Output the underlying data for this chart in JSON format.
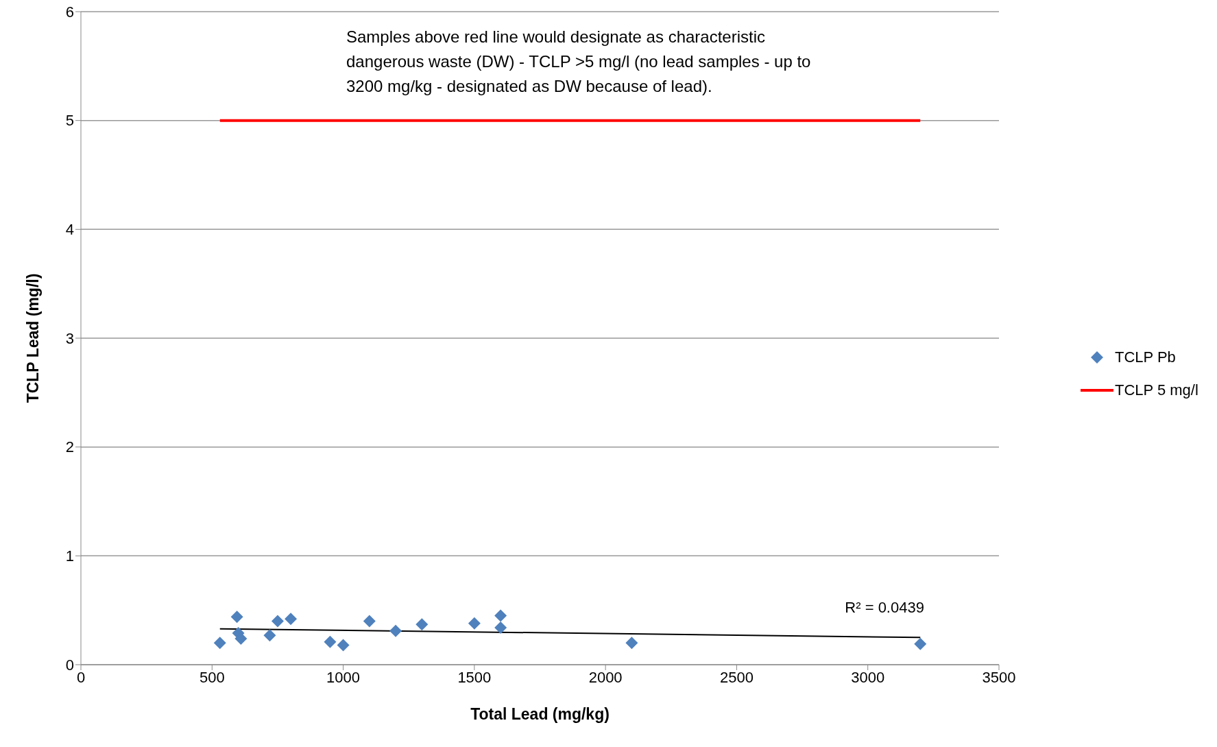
{
  "chart_data": {
    "type": "scatter",
    "xlabel": "Total Lead (mg/kg)",
    "ylabel": "TCLP Lead (mg/l)",
    "xlim": [
      0,
      3500
    ],
    "xticks": [
      0,
      500,
      1000,
      1500,
      2000,
      2500,
      3000,
      3500
    ],
    "ylim": [
      0,
      6
    ],
    "yticks": [
      0,
      1,
      2,
      3,
      4,
      5,
      6
    ],
    "grid": "y",
    "legend": "right",
    "marker": "diamond",
    "series": [
      {
        "name": "TCLP Pb",
        "color": "#4f81bd",
        "x": [
          530,
          595,
          600,
          610,
          720,
          750,
          800,
          950,
          1000,
          1100,
          1200,
          1300,
          1500,
          1600,
          1600,
          2100,
          3200
        ],
        "values": [
          0.2,
          0.44,
          0.29,
          0.24,
          0.27,
          0.4,
          0.42,
          0.21,
          0.18,
          0.4,
          0.31,
          0.37,
          0.38,
          0.45,
          0.34,
          0.2,
          0.19
        ]
      },
      {
        "name": "TCLP 5 mg/l",
        "type": "line",
        "color": "#ff0000",
        "marker": "none",
        "x": [
          530,
          3200
        ],
        "values": [
          5,
          5
        ]
      },
      {
        "type": "line",
        "color": "#000000",
        "marker": "none",
        "x": [
          530,
          3200
        ],
        "values": [
          0.33,
          0.25
        ]
      }
    ],
    "annotations": [
      "Samples above red line would designate as characteristic dangerous waste (DW) - TCLP >5 mg/l  (no lead samples  - up to 3200 mg/kg  - designated as DW because of lead).",
      "R² = 0.0439"
    ]
  }
}
